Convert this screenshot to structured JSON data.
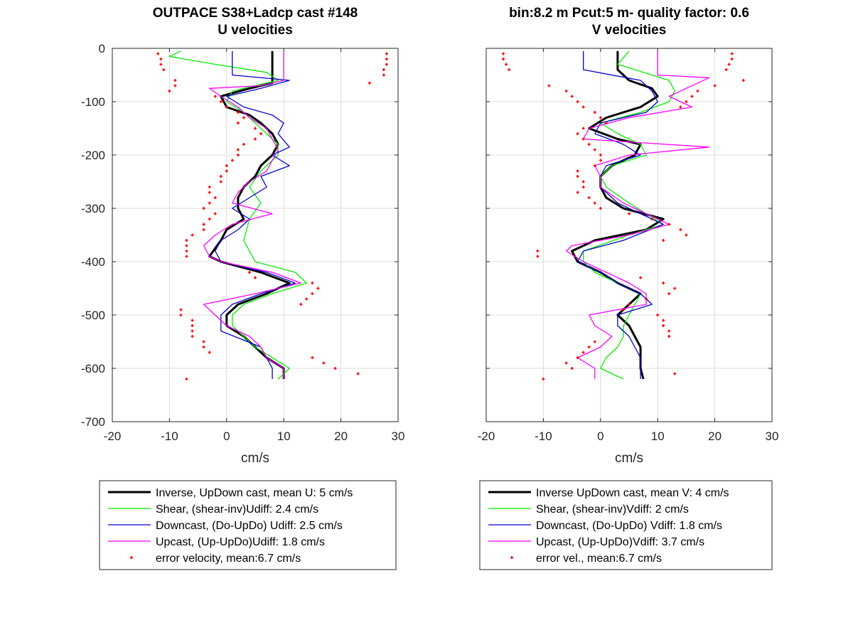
{
  "chart_data": [
    {
      "type": "line",
      "title": [
        "OUTPACE S38+Ladcp cast #148",
        "U velocities"
      ],
      "xlabel": "cm/s",
      "ylabel": "",
      "xlim": [
        -20,
        30
      ],
      "ylim": [
        -700,
        0
      ],
      "xticks": [
        "-20",
        "-10",
        "0",
        "10",
        "20",
        "30"
      ],
      "yticks": [
        "0",
        "-100",
        "-200",
        "-300",
        "-400",
        "-500",
        "-600",
        "-700"
      ],
      "grid": true,
      "legend_placement": "below",
      "series": [
        {
          "name": "Inverse, UpDown cast, mean U:  5 cm/s",
          "color": "#000000",
          "depth": [
            -5,
            -60,
            -65,
            -75,
            -90,
            -110,
            -125,
            -140,
            -150,
            -160,
            -180,
            -200,
            -220,
            -240,
            -260,
            -280,
            -300,
            -320,
            -340,
            -360,
            -375,
            -390,
            -400,
            -420,
            -440,
            -460,
            -480,
            -500,
            -520,
            -540,
            -560,
            -580,
            -600,
            -620
          ],
          "values": [
            8,
            8,
            8,
            4,
            -1,
            0,
            4,
            6,
            7,
            8,
            9,
            8,
            6,
            5,
            3,
            2,
            2,
            3,
            0,
            -1,
            -2,
            -3,
            -1,
            6,
            11,
            7,
            2,
            0,
            0,
            3,
            5,
            7,
            10,
            10
          ]
        },
        {
          "name": "Shear, (shear-inv)Udiff:  2.4 cm/s",
          "color": "#00ee00",
          "depth": [
            -5,
            -15,
            -30,
            -45,
            -60,
            -80,
            -100,
            -120,
            -150,
            -180,
            -200,
            -230,
            -260,
            -290,
            -320,
            -360,
            -400,
            -420,
            -440,
            -460,
            -480,
            -500,
            -520,
            -560,
            -600,
            -620
          ],
          "values": [
            -8,
            -10,
            -2,
            7,
            9,
            1,
            0,
            3,
            6,
            9,
            9,
            6,
            4,
            6,
            4,
            3,
            5,
            12,
            14,
            8,
            3,
            1,
            1,
            5,
            11,
            9
          ]
        },
        {
          "name": "Downcast, (Do-UpDo) Udiff:  2.5 cm/s",
          "color": "#0000cc",
          "depth": [
            -5,
            -50,
            -60,
            -75,
            -90,
            -110,
            -125,
            -140,
            -160,
            -185,
            -200,
            -220,
            -240,
            -260,
            -280,
            -300,
            -320,
            -340,
            -360,
            -380,
            -400,
            -420,
            -440,
            -460,
            -480,
            -500,
            -530,
            -560,
            -600,
            -620
          ],
          "values": [
            1,
            1,
            11,
            6,
            0,
            3,
            8,
            10,
            9,
            11,
            8,
            11,
            6,
            7,
            4,
            1,
            4,
            2,
            -1,
            -2,
            -1,
            7,
            12,
            6,
            1,
            -1,
            -1,
            6,
            8,
            8
          ]
        },
        {
          "name": "Upcast, (Up-UpDo)Udiff:  1.8 cm/s",
          "color": "#ff00ff",
          "depth": [
            -5,
            -60,
            -70,
            -75,
            -90,
            -110,
            -130,
            -150,
            -170,
            -190,
            -210,
            -230,
            -250,
            -270,
            -290,
            -310,
            -330,
            -350,
            -370,
            -390,
            -400,
            -420,
            -440,
            -460,
            -480,
            -500,
            -520,
            -540,
            -560,
            -580,
            -600,
            -620
          ],
          "values": [
            10,
            10,
            6,
            -3,
            -1,
            2,
            4,
            7,
            8,
            9,
            8,
            7,
            4,
            2,
            1,
            8,
            1,
            -2,
            -4,
            -3,
            -1,
            8,
            13,
            5,
            -4,
            -2,
            0,
            4,
            6,
            7,
            10,
            10
          ]
        },
        {
          "name": "error velocity, mean:6.7 cm/s",
          "color": "#ff0000",
          "marker": "dot",
          "depth": [
            -10,
            -20,
            -30,
            -40,
            -60,
            -70,
            -80,
            -90,
            -100,
            -110,
            -120,
            -130,
            -140,
            -150,
            -160,
            -170,
            -180,
            -190,
            -200,
            -210,
            -220,
            -230,
            -240,
            -250,
            -260,
            -270,
            -280,
            -290,
            -300,
            -310,
            -320,
            -330,
            -340,
            -350,
            -360,
            -370,
            -380,
            -390,
            -420,
            -430,
            -440,
            -450,
            -460,
            -470,
            -480,
            -490,
            -500,
            -510,
            -520,
            -530,
            -540,
            -550,
            -560,
            -570,
            -580,
            -590,
            -600,
            -610,
            -620,
            -10,
            -20,
            -30,
            -40,
            -50,
            -65
          ],
          "values": [
            -12,
            -11.5,
            -11.5,
            -11,
            -9,
            -9,
            -10,
            -2,
            -1,
            0,
            2,
            3,
            2,
            5,
            6,
            5,
            3,
            2,
            2,
            1,
            0,
            0,
            -1,
            -1,
            -3,
            -3,
            -2,
            -3,
            -4,
            -2,
            -3,
            -4,
            -4,
            -6,
            -7,
            -7,
            -7,
            -7,
            4,
            5,
            15,
            16,
            15,
            14,
            13,
            -8,
            -8,
            -6,
            -6,
            -6,
            -6,
            -4,
            -4,
            -3,
            15,
            17,
            19,
            23,
            -7,
            28,
            28,
            28,
            27.5,
            27.5,
            25
          ]
        }
      ]
    },
    {
      "type": "line",
      "title": [
        "bin:8.2 m  Pcut:5 m- quality factor:  0.6",
        "V velocities"
      ],
      "xlabel": "cm/s",
      "ylabel": "",
      "xlim": [
        -20,
        30
      ],
      "ylim": [
        -700,
        0
      ],
      "xticks": [
        "-20",
        "-10",
        "0",
        "10",
        "20",
        "30"
      ],
      "yticks": [
        "0",
        "-100",
        "-200",
        "-300",
        "-400",
        "-500",
        "-600",
        "-700"
      ],
      "grid": true,
      "legend_placement": "below",
      "series": [
        {
          "name": "Inverse UpDown cast, mean V:  4 cm/s",
          "color": "#000000",
          "depth": [
            -5,
            -40,
            -60,
            -75,
            -90,
            -110,
            -130,
            -150,
            -170,
            -180,
            -200,
            -220,
            -240,
            -260,
            -280,
            -300,
            -320,
            -340,
            -360,
            -380,
            -400,
            -420,
            -440,
            -460,
            -480,
            -500,
            -520,
            -540,
            -560,
            -580,
            -600,
            -620
          ],
          "values": [
            3,
            3,
            5,
            9,
            10,
            7,
            1,
            -2,
            3,
            7,
            6,
            2,
            0,
            0,
            1,
            4,
            11,
            8,
            -1,
            -5,
            -4,
            0,
            3,
            7,
            5,
            3,
            5,
            6,
            7,
            7,
            7,
            7.5
          ]
        },
        {
          "name": "Shear, (shear-inv)Vdiff:  2 cm/s",
          "color": "#00ee00",
          "depth": [
            -5,
            -30,
            -60,
            -80,
            -100,
            -120,
            -140,
            -160,
            -180,
            -200,
            -220,
            -240,
            -260,
            -290,
            -310,
            -330,
            -350,
            -380,
            -400,
            -420,
            -440,
            -460,
            -480,
            -500,
            -520,
            -540,
            -560,
            -580,
            -600,
            -620
          ],
          "values": [
            5,
            3,
            12,
            13,
            12,
            7,
            0,
            3,
            7,
            8,
            2,
            0,
            1,
            5,
            8,
            11,
            5,
            -3,
            -3,
            -1,
            3,
            7,
            6,
            5,
            4,
            4,
            3,
            1,
            0,
            4
          ]
        },
        {
          "name": "Downcast, (Do-UpDo) Vdiff:  1.8 cm/s",
          "color": "#0000cc",
          "depth": [
            -5,
            -40,
            -60,
            -80,
            -100,
            -120,
            -140,
            -160,
            -180,
            -200,
            -220,
            -240,
            -260,
            -290,
            -310,
            -330,
            -360,
            -380,
            -400,
            -420,
            -440,
            -460,
            -480,
            -500,
            -520,
            -540,
            -560,
            -580,
            -600,
            -620
          ],
          "values": [
            -3,
            -3,
            7,
            9,
            10,
            8,
            0,
            -1,
            4,
            7,
            1,
            0,
            0,
            3,
            7,
            11,
            4,
            -3,
            -4,
            0,
            3,
            7,
            9,
            3,
            3,
            5,
            6,
            7,
            7,
            7
          ]
        },
        {
          "name": "Upcast, (Up-UpDo)Vdiff:  3.7 cm/s",
          "color": "#ff00ff",
          "depth": [
            -5,
            -50,
            -55,
            -90,
            -110,
            -130,
            -150,
            -170,
            -185,
            -200,
            -220,
            -240,
            -260,
            -290,
            -310,
            -330,
            -350,
            -370,
            -380,
            -400,
            -420,
            -440,
            -460,
            -480,
            -500,
            -520,
            -540,
            -560,
            -580,
            -600,
            -620
          ],
          "values": [
            10,
            10,
            19,
            12,
            16,
            5,
            -2,
            -3,
            19,
            5,
            -1,
            0,
            0,
            4,
            8,
            12,
            5,
            -5,
            -6,
            -3,
            1,
            5,
            8,
            8,
            -2,
            -1,
            2,
            0,
            -4,
            -1,
            -1
          ]
        },
        {
          "name": "error vel., mean:6.7 cm/s",
          "color": "#ff0000",
          "marker": "dot",
          "depth": [
            -10,
            -20,
            -30,
            -40,
            -70,
            -80,
            -90,
            -100,
            -110,
            -120,
            -130,
            -140,
            -150,
            -160,
            -170,
            -180,
            -190,
            -200,
            -210,
            -220,
            -230,
            -240,
            -250,
            -260,
            -270,
            -280,
            -290,
            -300,
            -310,
            -320,
            -330,
            -340,
            -350,
            -360,
            -380,
            -390,
            -430,
            -440,
            -450,
            -460,
            -470,
            -480,
            -490,
            -500,
            -510,
            -520,
            -530,
            -540,
            -550,
            -560,
            -570,
            -580,
            -590,
            -600,
            -610,
            -620,
            -10,
            -20,
            -30,
            -40,
            -60,
            -70,
            -80,
            -90,
            -100,
            -110
          ],
          "values": [
            -17,
            -17,
            -16.5,
            -16,
            -9,
            -6,
            -5,
            -4,
            -3,
            -1,
            0,
            1,
            -3,
            -4,
            -3,
            -2,
            -1,
            0,
            0,
            -1,
            -4,
            -4,
            -3,
            -3,
            -4,
            -2,
            -1,
            0,
            5,
            9,
            12,
            14,
            15,
            11,
            -11,
            -11,
            7,
            11,
            13,
            12,
            8,
            5,
            4,
            10,
            11,
            11,
            12,
            12,
            -1,
            -2,
            -3,
            -4,
            -6,
            -5,
            13,
            -10,
            23,
            23,
            22.5,
            22,
            25,
            20,
            17,
            16,
            15,
            14
          ]
        }
      ]
    }
  ]
}
